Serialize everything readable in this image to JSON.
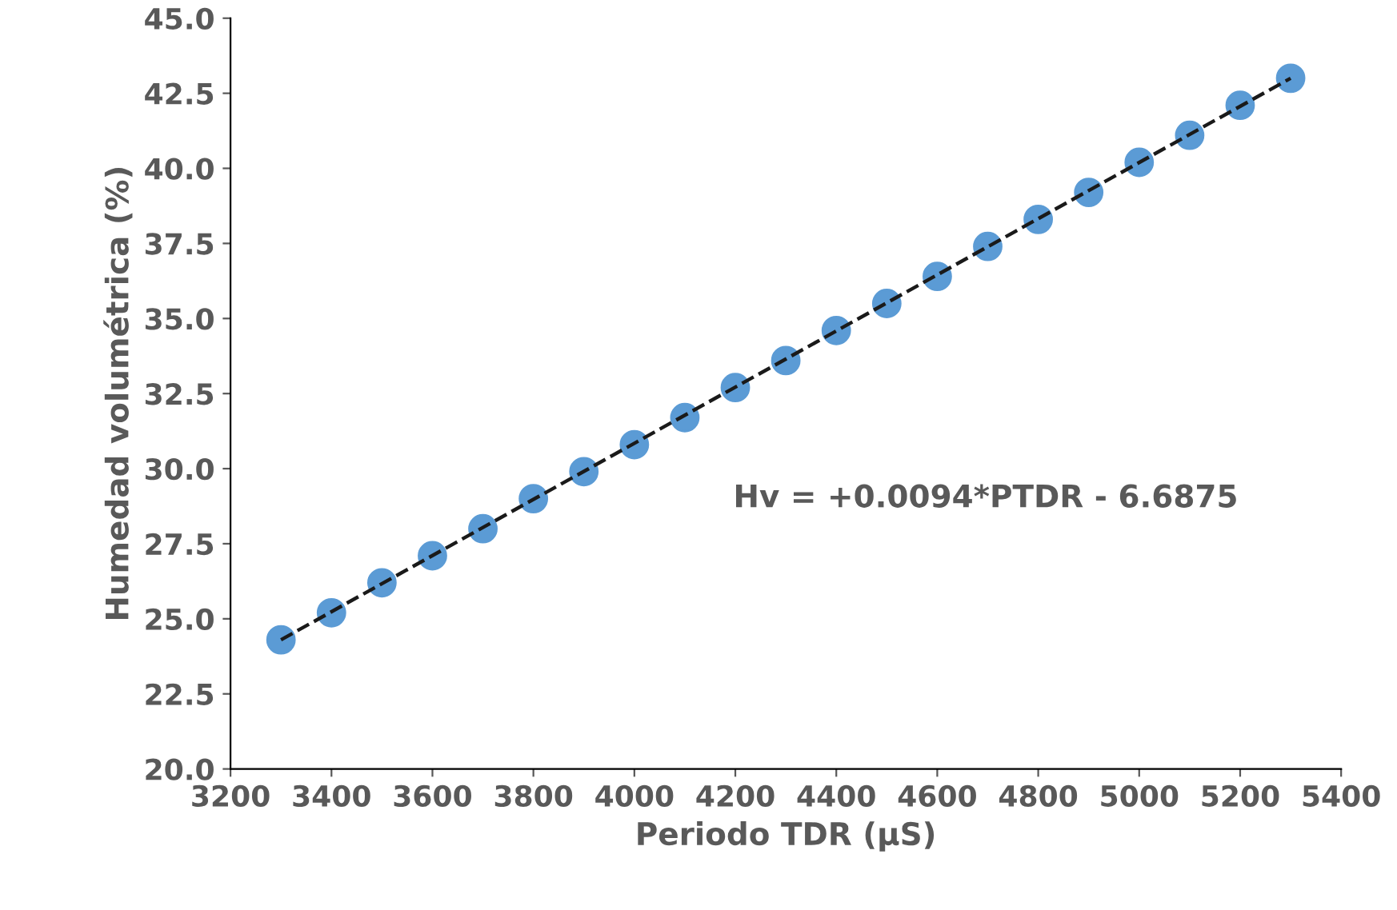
{
  "chart_data": {
    "type": "scatter",
    "xlabel": "Periodo TDR (µS)",
    "ylabel": "Humedad volumétrica (%)",
    "x": [
      3300,
      3400,
      3500,
      3600,
      3700,
      3800,
      3900,
      4000,
      4100,
      4200,
      4300,
      4400,
      4500,
      4600,
      4700,
      4800,
      4900,
      5000,
      5100,
      5200,
      5300
    ],
    "series": [
      {
        "color": "#5b9bd5",
        "marker": "circle",
        "values": [
          24.3,
          25.2,
          26.2,
          27.1,
          28.0,
          29.0,
          29.9,
          30.8,
          31.7,
          32.7,
          33.6,
          34.6,
          35.5,
          36.4,
          37.4,
          38.3,
          39.2,
          40.2,
          41.1,
          42.1,
          43.0
        ]
      },
      {
        "type": "line",
        "color": "#1a1a1a",
        "line_style": "dashed",
        "marker": "none",
        "x": [
          3300,
          5300
        ],
        "values": [
          24.3,
          43.0
        ]
      }
    ],
    "annotations": [
      "Hv = +0.0094*PTDR - 6.6875"
    ],
    "xlim": [
      3200,
      5400
    ],
    "xticks": [
      3200,
      3400,
      3600,
      3800,
      4000,
      4200,
      4400,
      4600,
      4800,
      5000,
      5200,
      5400
    ],
    "ylim": [
      20,
      45
    ],
    "yticks": [
      {
        "value": 20,
        "label": "20.0"
      },
      {
        "value": 22.5,
        "label": "22.5"
      },
      {
        "value": 25,
        "label": "25.0"
      },
      {
        "value": 27.5,
        "label": "27.5"
      },
      {
        "value": 30,
        "label": "30.0"
      },
      {
        "value": 32.5,
        "label": "32.5"
      },
      {
        "value": 35,
        "label": "35.0"
      },
      {
        "value": 37.5,
        "label": "37.5"
      },
      {
        "value": 40,
        "label": "40.0"
      },
      {
        "value": 42.5,
        "label": "42.5"
      },
      {
        "value": 45,
        "label": "45.0"
      }
    ],
    "grid": false,
    "legend": false
  }
}
